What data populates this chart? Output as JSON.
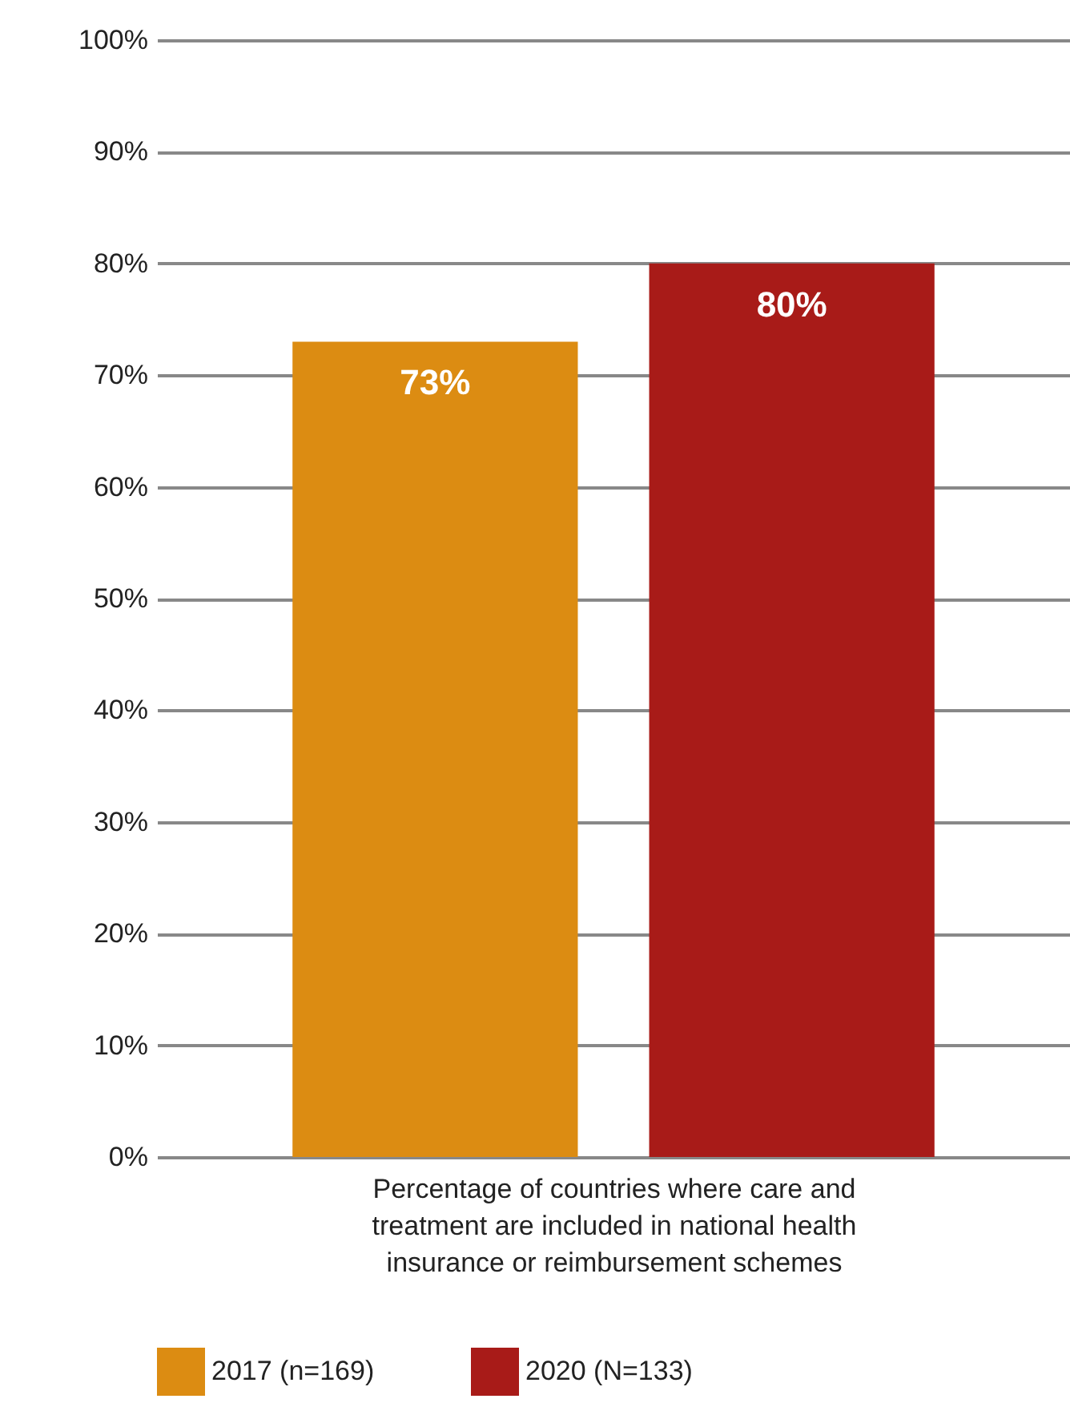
{
  "chart_data": {
    "type": "bar",
    "xlabel": "Percentage of countries where care and treatment are included in national health insurance or reimbursement schemes",
    "categories": [
      null
    ],
    "series": [
      {
        "name": "2017 (n=169)",
        "color": "#dc8c12",
        "values": [
          73
        ],
        "value_labels": [
          "73%"
        ]
      },
      {
        "name": "2020 (N=133)",
        "color": "#a81b18",
        "values": [
          80
        ],
        "value_labels": [
          "80%"
        ]
      }
    ],
    "ylim": [
      0,
      100
    ],
    "yticks": [
      {
        "value": 0,
        "label": "0%"
      },
      {
        "value": 10,
        "label": "10%"
      },
      {
        "value": 20,
        "label": "20%"
      },
      {
        "value": 30,
        "label": "30%"
      },
      {
        "value": 40,
        "label": "40%"
      },
      {
        "value": 50,
        "label": "50%"
      },
      {
        "value": 60,
        "label": "60%"
      },
      {
        "value": 70,
        "label": "70%"
      },
      {
        "value": 80,
        "label": "80%"
      },
      {
        "value": 90,
        "label": "90%"
      },
      {
        "value": 100,
        "label": "100%"
      }
    ],
    "grid": true,
    "legend": "bottom"
  }
}
